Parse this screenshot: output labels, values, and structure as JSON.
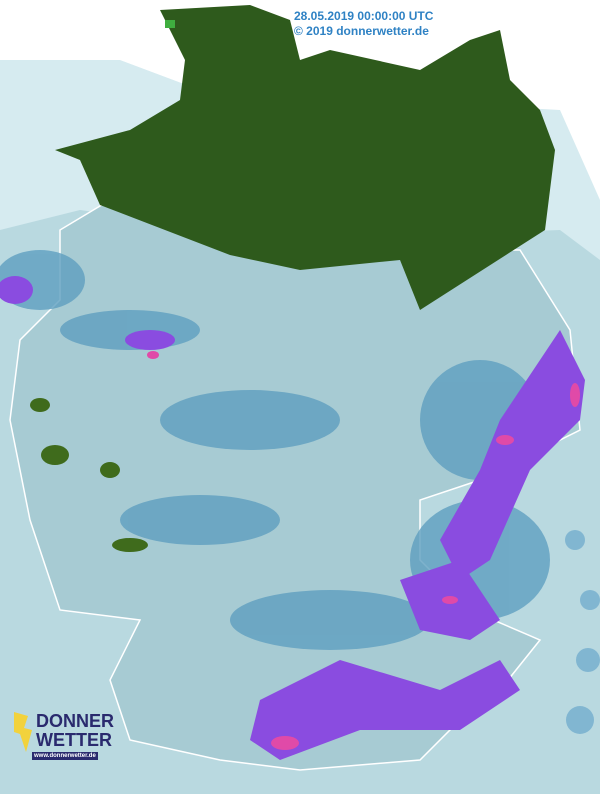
{
  "header": {
    "timestamp": "28.05.2019 00:00:00 UTC",
    "copyright": "© 2019 donnerwetter.de"
  },
  "logo": {
    "line1": "DONNER",
    "line2": "WETTER",
    "url": "www.donnerwetter.de",
    "icon": "lightning-bolt-icon"
  },
  "colors": {
    "no_data_land": "#2e5a1c",
    "light_precip": "#a9cfd8",
    "medium_precip": "#5f9fc0",
    "heavy_precip": "#3b6fae",
    "very_heavy": "#8a4ce0",
    "extreme": "#e04aa8",
    "stamp_text": "#2f82c4"
  }
}
